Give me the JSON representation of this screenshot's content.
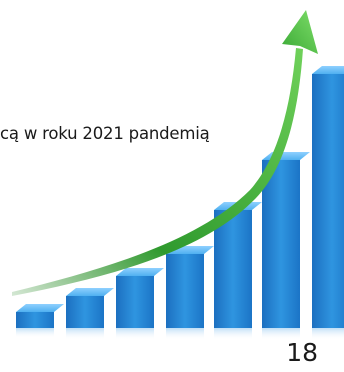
{
  "document": {
    "text_fragment": "cą w roku 2021 pandemią",
    "page_number": "18"
  },
  "illustration": {
    "icon": "growth-bar-chart-with-arrow",
    "bar_color": "#2b8fd8",
    "arrow_color": "#3aa935"
  }
}
